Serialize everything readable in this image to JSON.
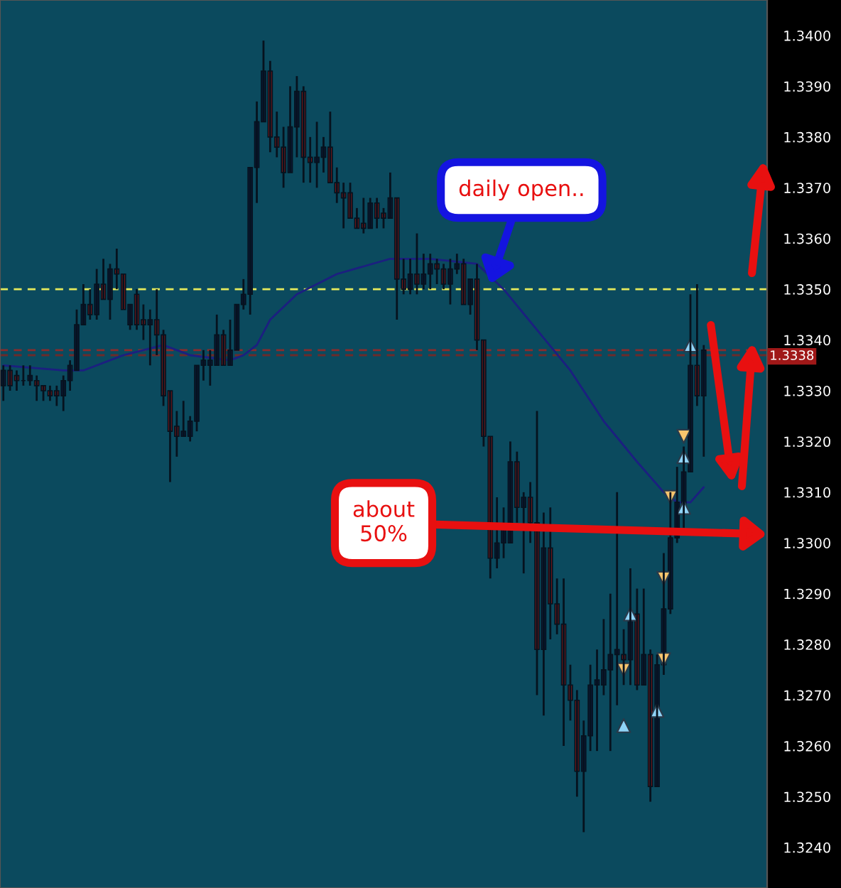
{
  "chart_data": {
    "type": "candlestick",
    "categories": [
      null,
      null,
      null,
      null,
      null,
      null,
      null,
      null,
      null,
      null,
      null,
      null,
      null,
      null,
      null,
      null,
      null,
      null,
      null,
      null,
      null,
      null,
      null,
      null,
      null,
      null,
      null,
      null,
      null,
      null,
      null,
      null,
      null,
      null,
      null,
      null,
      null,
      null,
      null,
      null,
      null,
      null,
      null,
      null,
      null,
      null,
      null,
      null,
      null,
      null,
      null,
      null,
      null,
      null,
      null,
      null,
      null,
      null,
      null,
      null,
      null,
      null,
      null,
      null,
      null,
      null,
      null,
      null,
      null,
      null,
      null,
      null,
      null,
      null,
      null,
      null,
      null,
      null,
      null,
      null,
      null,
      null,
      null,
      null,
      null,
      null,
      null,
      null,
      null,
      null,
      null,
      null,
      null,
      null,
      null,
      null,
      null,
      null,
      null,
      null,
      null,
      null,
      null,
      null,
      null,
      null,
      null,
      null,
      null,
      null,
      null,
      null,
      null,
      null,
      null
    ],
    "ohlc": [
      [
        1.3331,
        1.3335,
        1.3328,
        1.3334
      ],
      [
        1.3334,
        1.3335,
        1.333,
        1.3331
      ],
      [
        1.3333,
        1.3334,
        1.333,
        1.3332
      ],
      [
        1.3332,
        1.3335,
        1.3331,
        1.3332
      ],
      [
        1.3332,
        1.3335,
        1.3331,
        1.3333
      ],
      [
        1.3332,
        1.3333,
        1.3328,
        1.3331
      ],
      [
        1.3331,
        1.3331,
        1.3328,
        1.333
      ],
      [
        1.333,
        1.3331,
        1.3328,
        1.3329
      ],
      [
        1.333,
        1.3331,
        1.3327,
        1.3329
      ],
      [
        1.3329,
        1.3333,
        1.3326,
        1.3332
      ],
      [
        1.3332,
        1.3336,
        1.333,
        1.3335
      ],
      [
        1.3334,
        1.3346,
        1.3334,
        1.3343
      ],
      [
        1.3343,
        1.3351,
        1.3343,
        1.3347
      ],
      [
        1.3347,
        1.335,
        1.3344,
        1.3345
      ],
      [
        1.3345,
        1.3354,
        1.3344,
        1.3351
      ],
      [
        1.3351,
        1.3356,
        1.3348,
        1.3348
      ],
      [
        1.3348,
        1.3355,
        1.3344,
        1.3354
      ],
      [
        1.3354,
        1.3358,
        1.335,
        1.3353
      ],
      [
        1.3353,
        1.3353,
        1.3346,
        1.3346
      ],
      [
        1.3343,
        1.3347,
        1.3342,
        1.3347
      ],
      [
        1.3349,
        1.335,
        1.3342,
        1.3343
      ],
      [
        1.3344,
        1.3347,
        1.334,
        1.3343
      ],
      [
        1.3343,
        1.3346,
        1.3335,
        1.3344
      ],
      [
        1.3344,
        1.335,
        1.3337,
        1.3341
      ],
      [
        1.3341,
        1.3342,
        1.3327,
        1.3329
      ],
      [
        1.333,
        1.333,
        1.3312,
        1.3322
      ],
      [
        1.3323,
        1.3326,
        1.3317,
        1.3321
      ],
      [
        1.3321,
        1.3328,
        1.3321,
        1.3322
      ],
      [
        1.3321,
        1.3325,
        1.332,
        1.3324
      ],
      [
        1.3324,
        1.3335,
        1.3322,
        1.3335
      ],
      [
        1.3335,
        1.3338,
        1.3332,
        1.3336
      ],
      [
        1.3335,
        1.3338,
        1.3331,
        1.3336
      ],
      [
        1.3335,
        1.3345,
        1.3335,
        1.3341
      ],
      [
        1.3341,
        1.3342,
        1.3335,
        1.3335
      ],
      [
        1.3335,
        1.3344,
        1.3335,
        1.3338
      ],
      [
        1.3338,
        1.3347,
        1.3338,
        1.3347
      ],
      [
        1.3347,
        1.3352,
        1.3346,
        1.3349
      ],
      [
        1.3349,
        1.3374,
        1.3345,
        1.3374
      ],
      [
        1.3374,
        1.3387,
        1.3367,
        1.3383
      ],
      [
        1.3383,
        1.3399,
        1.3383,
        1.3393
      ],
      [
        1.3393,
        1.3395,
        1.3377,
        1.338
      ],
      [
        1.338,
        1.3385,
        1.3376,
        1.3378
      ],
      [
        1.3378,
        1.3382,
        1.337,
        1.3373
      ],
      [
        1.3373,
        1.339,
        1.3373,
        1.3382
      ],
      [
        1.3382,
        1.3392,
        1.3376,
        1.3389
      ],
      [
        1.3389,
        1.339,
        1.3371,
        1.3376
      ],
      [
        1.3376,
        1.338,
        1.3371,
        1.3375
      ],
      [
        1.3375,
        1.3383,
        1.337,
        1.3376
      ],
      [
        1.3376,
        1.338,
        1.3373,
        1.3378
      ],
      [
        1.3378,
        1.3385,
        1.3371,
        1.3371
      ],
      [
        1.3371,
        1.3374,
        1.3367,
        1.3369
      ],
      [
        1.3369,
        1.3371,
        1.3362,
        1.3368
      ],
      [
        1.3369,
        1.3371,
        1.3364,
        1.3364
      ],
      [
        1.3364,
        1.3366,
        1.3362,
        1.3362
      ],
      [
        1.3363,
        1.3368,
        1.3361,
        1.3362
      ],
      [
        1.3362,
        1.3368,
        1.3362,
        1.3367
      ],
      [
        1.3367,
        1.3368,
        1.3362,
        1.3364
      ],
      [
        1.3365,
        1.3366,
        1.3362,
        1.3364
      ],
      [
        1.3364,
        1.3373,
        1.3364,
        1.3368
      ],
      [
        1.3368,
        1.3368,
        1.3344,
        1.3352
      ],
      [
        1.3352,
        1.3356,
        1.3349,
        1.335
      ],
      [
        1.335,
        1.3356,
        1.3349,
        1.3353
      ],
      [
        1.3353,
        1.3361,
        1.3349,
        1.3351
      ],
      [
        1.3351,
        1.3357,
        1.335,
        1.3353
      ],
      [
        1.3353,
        1.3357,
        1.335,
        1.3355
      ],
      [
        1.3355,
        1.3356,
        1.3351,
        1.3354
      ],
      [
        1.3354,
        1.3355,
        1.335,
        1.3351
      ],
      [
        1.3351,
        1.3356,
        1.3347,
        1.3354
      ],
      [
        1.3354,
        1.3357,
        1.3353,
        1.3355
      ],
      [
        1.3355,
        1.3356,
        1.3347,
        1.3347
      ],
      [
        1.3347,
        1.3352,
        1.3345,
        1.3352
      ],
      [
        1.3352,
        1.3355,
        1.3338,
        1.334
      ],
      [
        1.334,
        1.334,
        1.3319,
        1.3321
      ],
      [
        1.3321,
        1.3321,
        1.3293,
        1.3297
      ],
      [
        1.3297,
        1.3309,
        1.3295,
        1.33
      ],
      [
        1.33,
        1.3307,
        1.3297,
        1.3303
      ],
      [
        1.33,
        1.332,
        1.33,
        1.3316
      ],
      [
        1.3316,
        1.3318,
        1.3304,
        1.3307
      ],
      [
        1.3307,
        1.331,
        1.3294,
        1.3309
      ],
      [
        1.3309,
        1.3312,
        1.33,
        1.3304
      ],
      [
        1.3304,
        1.3326,
        1.327,
        1.3279
      ],
      [
        1.3279,
        1.3306,
        1.3266,
        1.3299
      ],
      [
        1.3299,
        1.3307,
        1.3281,
        1.3288
      ],
      [
        1.3288,
        1.3293,
        1.3282,
        1.3284
      ],
      [
        1.3284,
        1.3293,
        1.326,
        1.3272
      ],
      [
        1.3272,
        1.3276,
        1.3265,
        1.3269
      ],
      [
        1.3269,
        1.3271,
        1.325,
        1.3255
      ],
      [
        1.3255,
        1.3265,
        1.3243,
        1.3262
      ],
      [
        1.3262,
        1.3276,
        1.3259,
        1.3272
      ],
      [
        1.3272,
        1.3279,
        1.3259,
        1.3273
      ],
      [
        1.3272,
        1.3285,
        1.327,
        1.3275
      ],
      [
        1.3275,
        1.329,
        1.3259,
        1.3278
      ],
      [
        1.3278,
        1.331,
        1.3268,
        1.3279
      ],
      [
        1.3278,
        1.3283,
        1.3272,
        1.3277
      ],
      [
        1.3277,
        1.3295,
        1.3272,
        1.3286
      ],
      [
        1.3286,
        1.3291,
        1.3271,
        1.3272
      ],
      [
        1.3272,
        1.3291,
        1.3272,
        1.3278
      ],
      [
        1.3278,
        1.3279,
        1.3249,
        1.3252
      ],
      [
        1.3252,
        1.3278,
        1.3252,
        1.3276
      ],
      [
        1.3276,
        1.3298,
        1.3274,
        1.3287
      ],
      [
        1.3287,
        1.331,
        1.3286,
        1.3301
      ],
      [
        1.3301,
        1.3315,
        1.33,
        1.3308
      ],
      [
        1.3307,
        1.3319,
        1.3303,
        1.3314
      ],
      [
        1.3314,
        1.3349,
        1.3314,
        1.3335
      ],
      [
        1.3335,
        1.3351,
        1.3327,
        1.3329
      ],
      [
        1.3329,
        1.3339,
        1.3317,
        1.3338
      ],
      null,
      null,
      null,
      null,
      null,
      null,
      null,
      null,
      null
    ],
    "series": [
      {
        "type": "line",
        "color": "#1c1f80",
        "values": [
          1.3335,
          null,
          null,
          null,
          null,
          null,
          null,
          null,
          null,
          1.3334,
          null,
          null,
          1.3334,
          null,
          null,
          null,
          null,
          null,
          1.3337,
          null,
          null,
          1.3338,
          null,
          null,
          1.3339,
          null,
          null,
          null,
          1.3337,
          null,
          null,
          null,
          null,
          null,
          1.3336,
          null,
          1.3337,
          null,
          1.3339,
          null,
          1.3344,
          null,
          null,
          null,
          1.3349,
          null,
          null,
          null,
          null,
          null,
          1.3353,
          null,
          null,
          null,
          null,
          null,
          null,
          null,
          1.3356,
          null,
          null,
          null,
          null,
          null,
          1.3356,
          null,
          null,
          null,
          null,
          null,
          null,
          1.3355,
          null,
          null,
          null,
          1.335,
          null,
          null,
          null,
          null,
          1.3342,
          null,
          null,
          null,
          null,
          1.3334,
          null,
          null,
          null,
          null,
          1.3324,
          null,
          null,
          null,
          null,
          1.3316,
          null,
          null,
          null,
          1.331,
          null,
          1.3308,
          null,
          1.3308,
          null,
          1.3311,
          null,
          null,
          null,
          null,
          null,
          null,
          null,
          null,
          null
        ]
      },
      {
        "type": "scatter",
        "marker": "triangle",
        "color": "#8fd3f7",
        "values": [
          null,
          null,
          null,
          null,
          null,
          null,
          null,
          null,
          null,
          null,
          null,
          null,
          null,
          null,
          null,
          null,
          null,
          null,
          null,
          null,
          null,
          null,
          null,
          null,
          null,
          null,
          null,
          null,
          null,
          null,
          null,
          null,
          null,
          null,
          null,
          null,
          null,
          null,
          null,
          null,
          null,
          null,
          null,
          null,
          null,
          null,
          null,
          null,
          null,
          null,
          null,
          null,
          null,
          null,
          null,
          null,
          null,
          null,
          null,
          null,
          null,
          null,
          null,
          null,
          null,
          null,
          null,
          null,
          null,
          null,
          null,
          null,
          null,
          null,
          null,
          null,
          null,
          null,
          null,
          null,
          null,
          null,
          null,
          null,
          null,
          null,
          null,
          null,
          null,
          null,
          null,
          null,
          null,
          1.3264,
          1.3286,
          null,
          null,
          null,
          1.3267,
          null,
          null,
          null,
          1.3317,
          1.3339,
          null,
          null,
          null,
          null,
          null,
          null,
          null,
          null,
          null,
          null,
          null
        ]
      },
      {
        "type": "scatter",
        "marker": "triangle",
        "color": "#8fd3f7",
        "values": [
          null,
          null,
          null,
          null,
          null,
          null,
          null,
          null,
          null,
          null,
          null,
          null,
          null,
          null,
          null,
          null,
          null,
          null,
          null,
          null,
          null,
          null,
          null,
          null,
          null,
          null,
          null,
          null,
          null,
          null,
          null,
          null,
          null,
          null,
          null,
          null,
          null,
          null,
          null,
          null,
          null,
          null,
          null,
          null,
          null,
          null,
          null,
          null,
          null,
          null,
          null,
          null,
          null,
          null,
          null,
          null,
          null,
          null,
          null,
          null,
          null,
          null,
          null,
          null,
          null,
          null,
          null,
          null,
          null,
          null,
          null,
          null,
          null,
          null,
          null,
          null,
          null,
          null,
          null,
          null,
          null,
          null,
          null,
          null,
          null,
          null,
          null,
          null,
          null,
          null,
          null,
          null,
          null,
          null,
          null,
          null,
          null,
          null,
          null,
          null,
          null,
          null,
          1.3307,
          null,
          null,
          null,
          null,
          null,
          null,
          null,
          null,
          null,
          null,
          null,
          null
        ]
      },
      {
        "type": "scatter",
        "marker": "triangle-down",
        "color": "#f7c56e",
        "values": [
          null,
          null,
          null,
          null,
          null,
          null,
          null,
          null,
          null,
          null,
          null,
          null,
          null,
          null,
          null,
          null,
          null,
          null,
          null,
          null,
          null,
          null,
          null,
          null,
          null,
          null,
          null,
          null,
          null,
          null,
          null,
          null,
          null,
          null,
          null,
          null,
          null,
          null,
          null,
          null,
          null,
          null,
          null,
          null,
          null,
          null,
          null,
          null,
          null,
          null,
          null,
          null,
          null,
          null,
          null,
          null,
          null,
          null,
          null,
          null,
          null,
          null,
          null,
          null,
          null,
          null,
          null,
          null,
          null,
          null,
          null,
          null,
          null,
          null,
          null,
          null,
          null,
          null,
          null,
          null,
          null,
          null,
          null,
          null,
          null,
          null,
          null,
          null,
          null,
          null,
          null,
          null,
          null,
          1.3275,
          null,
          null,
          null,
          null,
          null,
          1.3293,
          1.3309,
          null,
          1.3321,
          null,
          null,
          null,
          null,
          null,
          null,
          null,
          null,
          null,
          null,
          null,
          null
        ]
      },
      {
        "type": "scatter",
        "marker": "triangle-down",
        "color": "#f7c56e",
        "values": [
          null,
          null,
          null,
          null,
          null,
          null,
          null,
          null,
          null,
          null,
          null,
          null,
          null,
          null,
          null,
          null,
          null,
          null,
          null,
          null,
          null,
          null,
          null,
          null,
          null,
          null,
          null,
          null,
          null,
          null,
          null,
          null,
          null,
          null,
          null,
          null,
          null,
          null,
          null,
          null,
          null,
          null,
          null,
          null,
          null,
          null,
          null,
          null,
          null,
          null,
          null,
          null,
          null,
          null,
          null,
          null,
          null,
          null,
          null,
          null,
          null,
          null,
          null,
          null,
          null,
          null,
          null,
          null,
          null,
          null,
          null,
          null,
          null,
          null,
          null,
          null,
          null,
          null,
          null,
          null,
          null,
          null,
          null,
          null,
          null,
          null,
          null,
          null,
          null,
          null,
          null,
          null,
          null,
          null,
          null,
          null,
          null,
          null,
          null,
          1.3277,
          null,
          null,
          null,
          null,
          null,
          null,
          null,
          null,
          null,
          null,
          null,
          null,
          null,
          null,
          null
        ]
      }
    ],
    "ref_lines": [
      {
        "axis": "y",
        "value": 1.335,
        "color": "#e6ea5c",
        "line_style": "dashed"
      },
      {
        "axis": "y",
        "value": 1.3338,
        "label": "1.3338",
        "color": "#8b2b2b",
        "line_style": "dashed"
      },
      {
        "axis": "y",
        "value": 1.3337,
        "color": "#6b2b2b",
        "line_style": "dashed"
      }
    ],
    "annotations": [
      "daily open..",
      "about\n50%"
    ],
    "ylim": [
      1.3232,
      1.3407
    ],
    "yticks": [
      {
        "value": 1.324,
        "label": "1.3240"
      },
      {
        "value": 1.325,
        "label": "1.3250"
      },
      {
        "value": 1.326,
        "label": "1.3260"
      },
      {
        "value": 1.327,
        "label": "1.3270"
      },
      {
        "value": 1.328,
        "label": "1.3280"
      },
      {
        "value": 1.329,
        "label": "1.3290"
      },
      {
        "value": 1.33,
        "label": "1.3300"
      },
      {
        "value": 1.331,
        "label": "1.3310"
      },
      {
        "value": 1.332,
        "label": "1.3320"
      },
      {
        "value": 1.333,
        "label": "1.3330"
      },
      {
        "value": 1.334,
        "label": "1.3340"
      },
      {
        "value": 1.335,
        "label": "1.3350"
      },
      {
        "value": 1.336,
        "label": "1.3360"
      },
      {
        "value": 1.337,
        "label": "1.3370"
      },
      {
        "value": 1.338,
        "label": "1.3380"
      },
      {
        "value": 1.339,
        "label": "1.3390"
      },
      {
        "value": 1.34,
        "label": "1.3400"
      }
    ],
    "tick_labels": "y"
  }
}
